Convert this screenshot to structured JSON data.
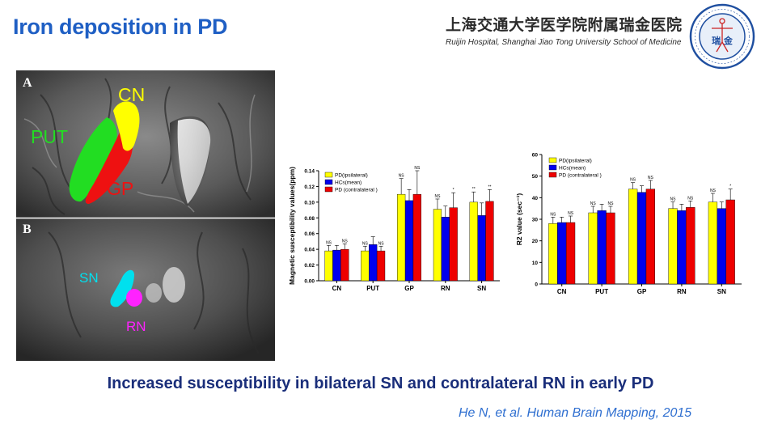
{
  "slide": {
    "title": "Iron deposition in PD",
    "institution_cn": "上海交通大学医学院附属瑞金医院",
    "institution_en": "Ruijin Hospital, Shanghai Jiao Tong University School of Medicine",
    "logo_text": "瑞 金",
    "caption": "Increased susceptibility in bilateral SN and contralateral RN in early PD",
    "citation": "He N, et al. Human Brain Mapping, 2015"
  },
  "figure": {
    "panel_a_label": "A",
    "panel_b_label": "B",
    "labels": {
      "cn": "CN",
      "put": "PUT",
      "gp": "GP",
      "sn": "SN",
      "rn": "RN"
    },
    "colors": {
      "cn": "#ffff00",
      "put": "#22dd22",
      "gp": "#ee1111",
      "sn": "#00e0ee",
      "rn": "#ff22ff"
    }
  },
  "chart_data": [
    {
      "type": "bar",
      "ylabel": "Magnetic susceptibility values(ppm)",
      "xlabel": "",
      "categories": [
        "CN",
        "PUT",
        "GP",
        "RN",
        "SN"
      ],
      "ylim": [
        0,
        0.14
      ],
      "yticks": [
        "0.00",
        "0.02",
        "0.04",
        "0.06",
        "0.08",
        "0.10",
        "0.12",
        "0.14"
      ],
      "series": [
        {
          "name": "PD(ipsilateral)",
          "color": "#ffff00",
          "values": [
            0.038,
            0.038,
            0.11,
            0.091,
            0.1
          ],
          "errors": [
            0.007,
            0.006,
            0.02,
            0.013,
            0.013
          ]
        },
        {
          "name": "HCs(mean)",
          "color": "#0000ee",
          "values": [
            0.039,
            0.046,
            0.102,
            0.081,
            0.083
          ],
          "errors": [
            0.006,
            0.01,
            0.014,
            0.014,
            0.016
          ]
        },
        {
          "name": "PD (contralateral )",
          "color": "#ee0000",
          "values": [
            0.04,
            0.038,
            0.11,
            0.093,
            0.101
          ],
          "errors": [
            0.007,
            0.006,
            0.03,
            0.019,
            0.015
          ]
        }
      ],
      "significance": [
        [
          "NS",
          "",
          "NS"
        ],
        [
          "NS",
          "",
          "NS"
        ],
        [
          "NS",
          "",
          "NS"
        ],
        [
          "NS",
          "",
          "*"
        ],
        [
          "**",
          "",
          "**"
        ]
      ],
      "legend": "top-left"
    },
    {
      "type": "bar",
      "ylabel": "R2 value (sec⁻¹)",
      "xlabel": "",
      "categories": [
        "CN",
        "PUT",
        "GP",
        "RN",
        "SN"
      ],
      "ylim": [
        0,
        60
      ],
      "yticks": [
        "0",
        "10",
        "20",
        "30",
        "40",
        "50",
        "60"
      ],
      "series": [
        {
          "name": "PD(ipsilateral)",
          "color": "#ffff00",
          "values": [
            28,
            33,
            44,
            35,
            38
          ],
          "errors": [
            3,
            3,
            3,
            3,
            4
          ]
        },
        {
          "name": "HCs(mean)",
          "color": "#0000ee",
          "values": [
            28.5,
            34,
            42.5,
            34,
            35
          ],
          "errors": [
            2.5,
            3,
            3,
            3,
            3
          ]
        },
        {
          "name": "PD (contralateral )",
          "color": "#ee0000",
          "values": [
            28.5,
            33,
            44,
            35.5,
            39
          ],
          "errors": [
            3,
            3,
            4,
            3,
            5
          ]
        }
      ],
      "significance": [
        [
          "NS",
          "",
          "NS"
        ],
        [
          "NS",
          "",
          "NS"
        ],
        [
          "NS",
          "",
          "NS"
        ],
        [
          "NS",
          "",
          "NS"
        ],
        [
          "NS",
          "",
          "*"
        ]
      ],
      "legend": "top-left"
    }
  ]
}
